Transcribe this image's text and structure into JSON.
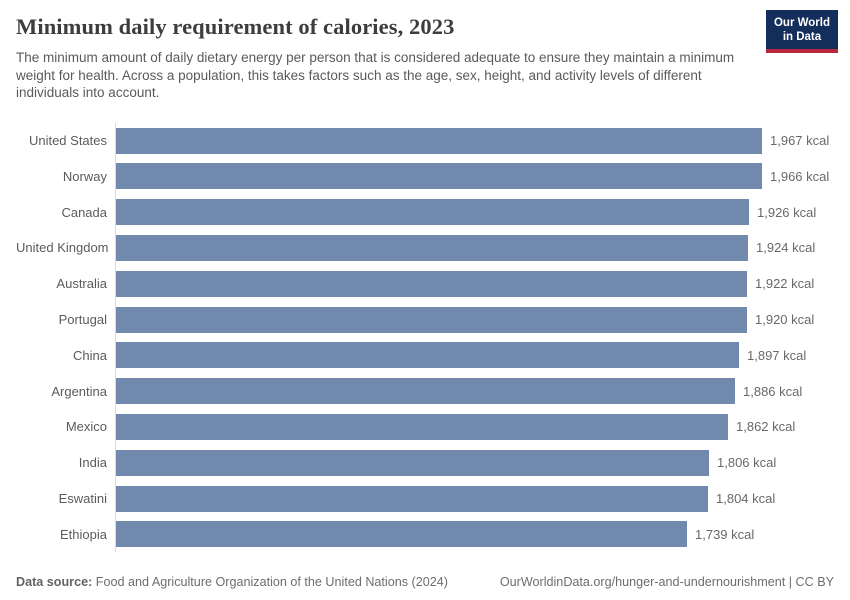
{
  "header": {
    "title": "Minimum daily requirement of calories, 2023",
    "subtitle": "The minimum amount of daily dietary energy per person that is considered adequate to ensure they maintain a minimum weight for health. Across a population, this takes factors such as the age, sex, height, and activity levels of different individuals into account.",
    "logo": {
      "line1": "Our World",
      "line2": "in Data"
    }
  },
  "chart_data": {
    "type": "bar",
    "orientation": "horizontal",
    "title": "Minimum daily requirement of calories, 2023",
    "unit": "kcal",
    "categories": [
      "United States",
      "Norway",
      "Canada",
      "United Kingdom",
      "Australia",
      "Portugal",
      "China",
      "Argentina",
      "Mexico",
      "India",
      "Eswatini",
      "Ethiopia"
    ],
    "values": [
      1967,
      1966,
      1926,
      1924,
      1922,
      1920,
      1897,
      1886,
      1862,
      1806,
      1804,
      1739
    ],
    "value_labels": [
      "1,967 kcal",
      "1,966 kcal",
      "1,926 kcal",
      "1,924 kcal",
      "1,922 kcal",
      "1,920 kcal",
      "1,897 kcal",
      "1,886 kcal",
      "1,862 kcal",
      "1,806 kcal",
      "1,804 kcal",
      "1,739 kcal"
    ],
    "xlim": [
      0,
      1967
    ],
    "grid": false,
    "legend": "none",
    "bar_color": "#7289ae"
  },
  "footer": {
    "datasource_label": "Data source:",
    "datasource_value": " Food and Agriculture Organization of the United Nations (2024)",
    "credit": "OurWorldinData.org/hunger-and-undernourishment | CC BY"
  },
  "colors": {
    "bar": "#7289ae",
    "logo_background": "#132e5a",
    "logo_stripe": "#ba283c",
    "axis_line": "#dcdcdc",
    "title_text": "#3d3d3d",
    "subtitle_text": "#5a5a5a",
    "label_text": "#5b5b5b",
    "value_text": "#696969"
  }
}
